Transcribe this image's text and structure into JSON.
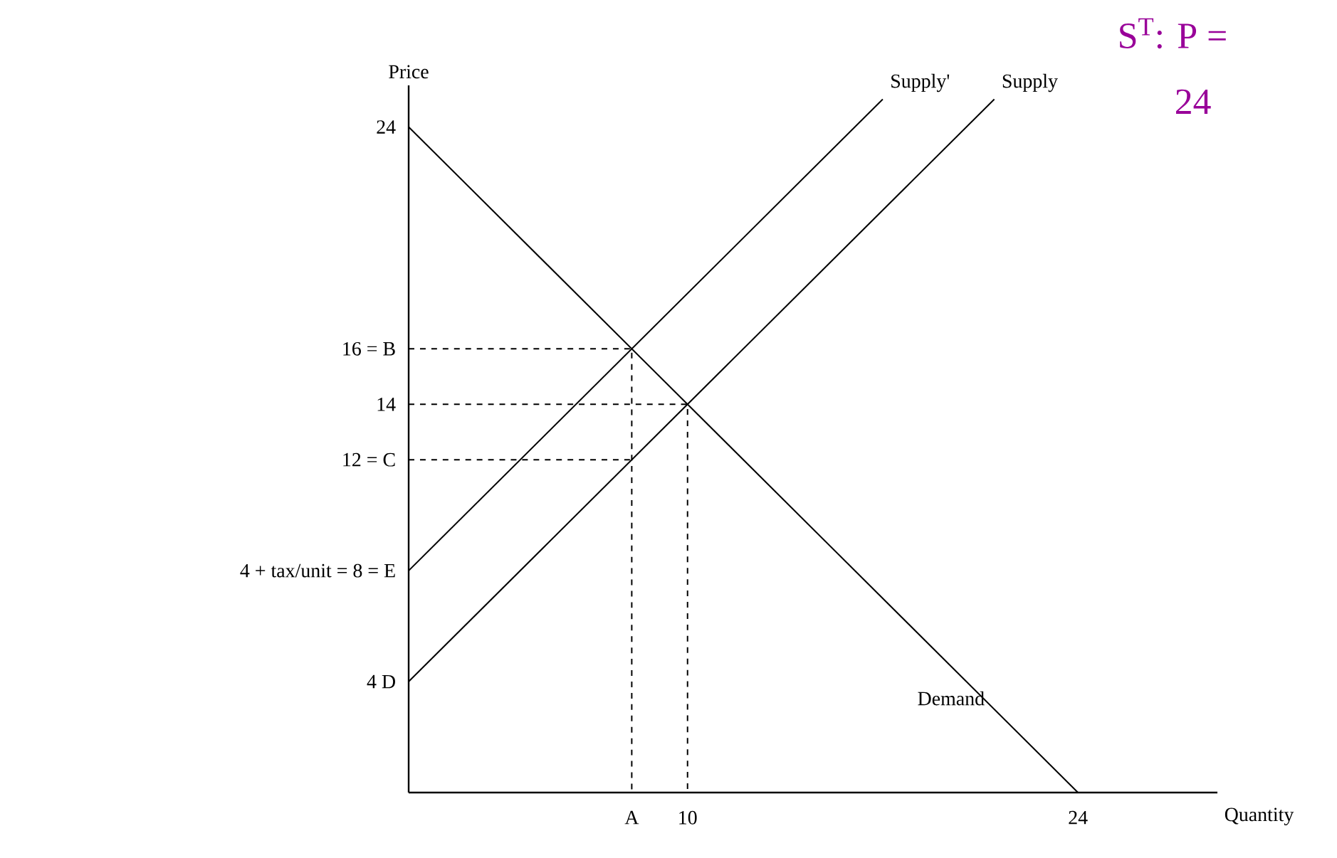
{
  "chart_data": {
    "type": "line",
    "xlabel": "Quantity",
    "ylabel": "Price",
    "xlim": [
      0,
      29
    ],
    "ylim": [
      0,
      25.5
    ],
    "xticks": [
      {
        "value": 8,
        "label": "A"
      },
      10,
      24
    ],
    "yticks": [
      {
        "value": 4,
        "label": "4 D"
      },
      {
        "value": 8,
        "label": "4 + tax/unit = 8 = E"
      },
      {
        "value": 12,
        "label": "12 = C"
      },
      14,
      {
        "value": 16,
        "label": "16 = B"
      },
      24
    ],
    "series": [
      {
        "name": "Demand",
        "color": "#000000",
        "x": [
          0,
          24
        ],
        "values": [
          24,
          0
        ]
      },
      {
        "name": "Supply",
        "color": "#000000",
        "x": [
          0,
          21
        ],
        "values": [
          4,
          25
        ]
      },
      {
        "name": "Supply'",
        "color": "#000000",
        "x": [
          0,
          17
        ],
        "values": [
          8,
          25
        ]
      },
      {
        "color": "#000000",
        "line_style": "dashed",
        "x": [
          0,
          8,
          8
        ],
        "values": [
          16,
          16,
          0
        ]
      },
      {
        "color": "#000000",
        "line_style": "dashed",
        "x": [
          0,
          10,
          10
        ],
        "values": [
          14,
          14,
          0
        ]
      },
      {
        "color": "#000000",
        "line_style": "dashed",
        "x": [
          0,
          8
        ],
        "values": [
          12,
          12
        ]
      }
    ],
    "annotations": [
      "S$^{T}$: P =",
      "24"
    ]
  }
}
